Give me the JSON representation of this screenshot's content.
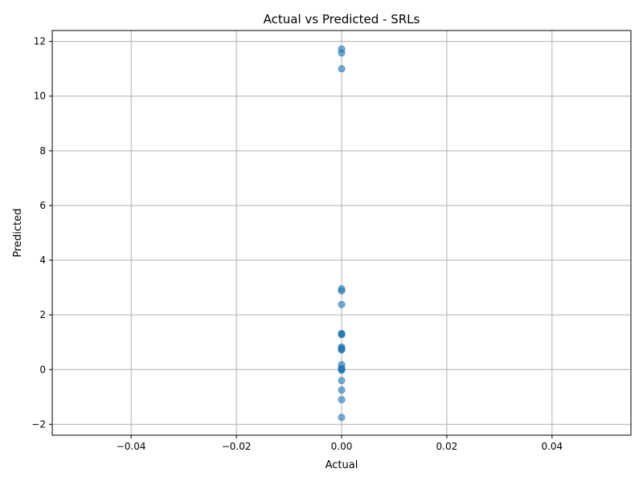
{
  "chart_data": {
    "type": "scatter",
    "title": "Actual vs Predicted - SRLs",
    "xlabel": "Actual",
    "ylabel": "Predicted",
    "xlim": [
      -0.055,
      0.055
    ],
    "ylim": [
      -2.4,
      12.4
    ],
    "xticks": [
      -0.04,
      -0.02,
      0.0,
      0.02,
      0.04
    ],
    "xtick_labels": [
      "−0.04",
      "−0.02",
      "0.00",
      "0.02",
      "0.04"
    ],
    "yticks": [
      -2,
      0,
      2,
      4,
      6,
      8,
      10,
      12
    ],
    "ytick_labels": [
      "−2",
      "0",
      "2",
      "4",
      "6",
      "8",
      "10",
      "12"
    ],
    "grid": true,
    "point_color": "#1f77b4",
    "point_alpha": 0.6,
    "x": [
      0,
      0,
      0,
      0,
      0,
      0,
      0,
      0,
      0,
      0,
      0,
      0,
      0,
      0,
      0,
      0,
      0,
      0,
      0,
      0,
      0,
      0
    ],
    "y": [
      11.72,
      11.58,
      11.0,
      2.95,
      2.88,
      2.38,
      1.3,
      1.28,
      0.82,
      0.78,
      0.75,
      0.72,
      0.18,
      0.05,
      0.0,
      -0.02,
      -0.4,
      -0.75,
      -1.1,
      -1.75,
      0.02,
      1.32
    ]
  }
}
